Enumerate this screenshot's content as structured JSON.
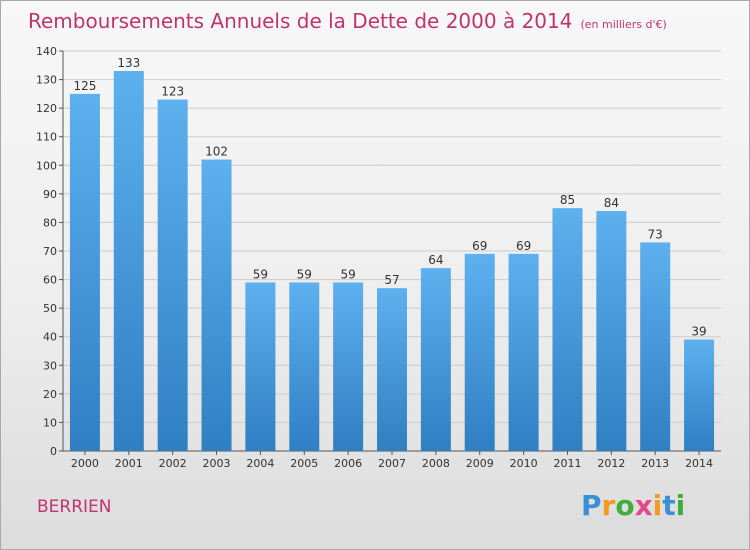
{
  "title": "Remboursements Annuels de la Dette de 2000 à 2014",
  "subtitle": "(en milliers d'€)",
  "commune": "BERRIEN",
  "logo": {
    "text": "Proxiti",
    "letters": [
      {
        "ch": "P",
        "color": "#3a8fd6"
      },
      {
        "ch": "r",
        "color": "#f29a1e"
      },
      {
        "ch": "o",
        "color": "#3fae3f"
      },
      {
        "ch": "x",
        "color": "#e04a8c"
      },
      {
        "ch": "i",
        "color": "#f29a1e"
      },
      {
        "ch": "t",
        "color": "#3a8fd6"
      },
      {
        "ch": "i",
        "color": "#3fae3f"
      }
    ]
  },
  "colors": {
    "bar_top": "#5eb0ee",
    "bar_bottom": "#2f7fc3",
    "title": "#c0336f",
    "grid": "#cccccc"
  },
  "chart_data": {
    "type": "bar",
    "categories": [
      "2000",
      "2001",
      "2002",
      "2003",
      "2004",
      "2005",
      "2006",
      "2007",
      "2008",
      "2009",
      "2010",
      "2011",
      "2012",
      "2013",
      "2014"
    ],
    "values": [
      125,
      133,
      123,
      102,
      59,
      59,
      59,
      57,
      64,
      69,
      69,
      85,
      84,
      73,
      39
    ],
    "ylim": [
      0,
      140
    ],
    "yticks": [
      0,
      10,
      20,
      30,
      40,
      50,
      60,
      70,
      80,
      90,
      100,
      110,
      120,
      130,
      140
    ],
    "grid": true,
    "xlabel": "",
    "ylabel": ""
  }
}
